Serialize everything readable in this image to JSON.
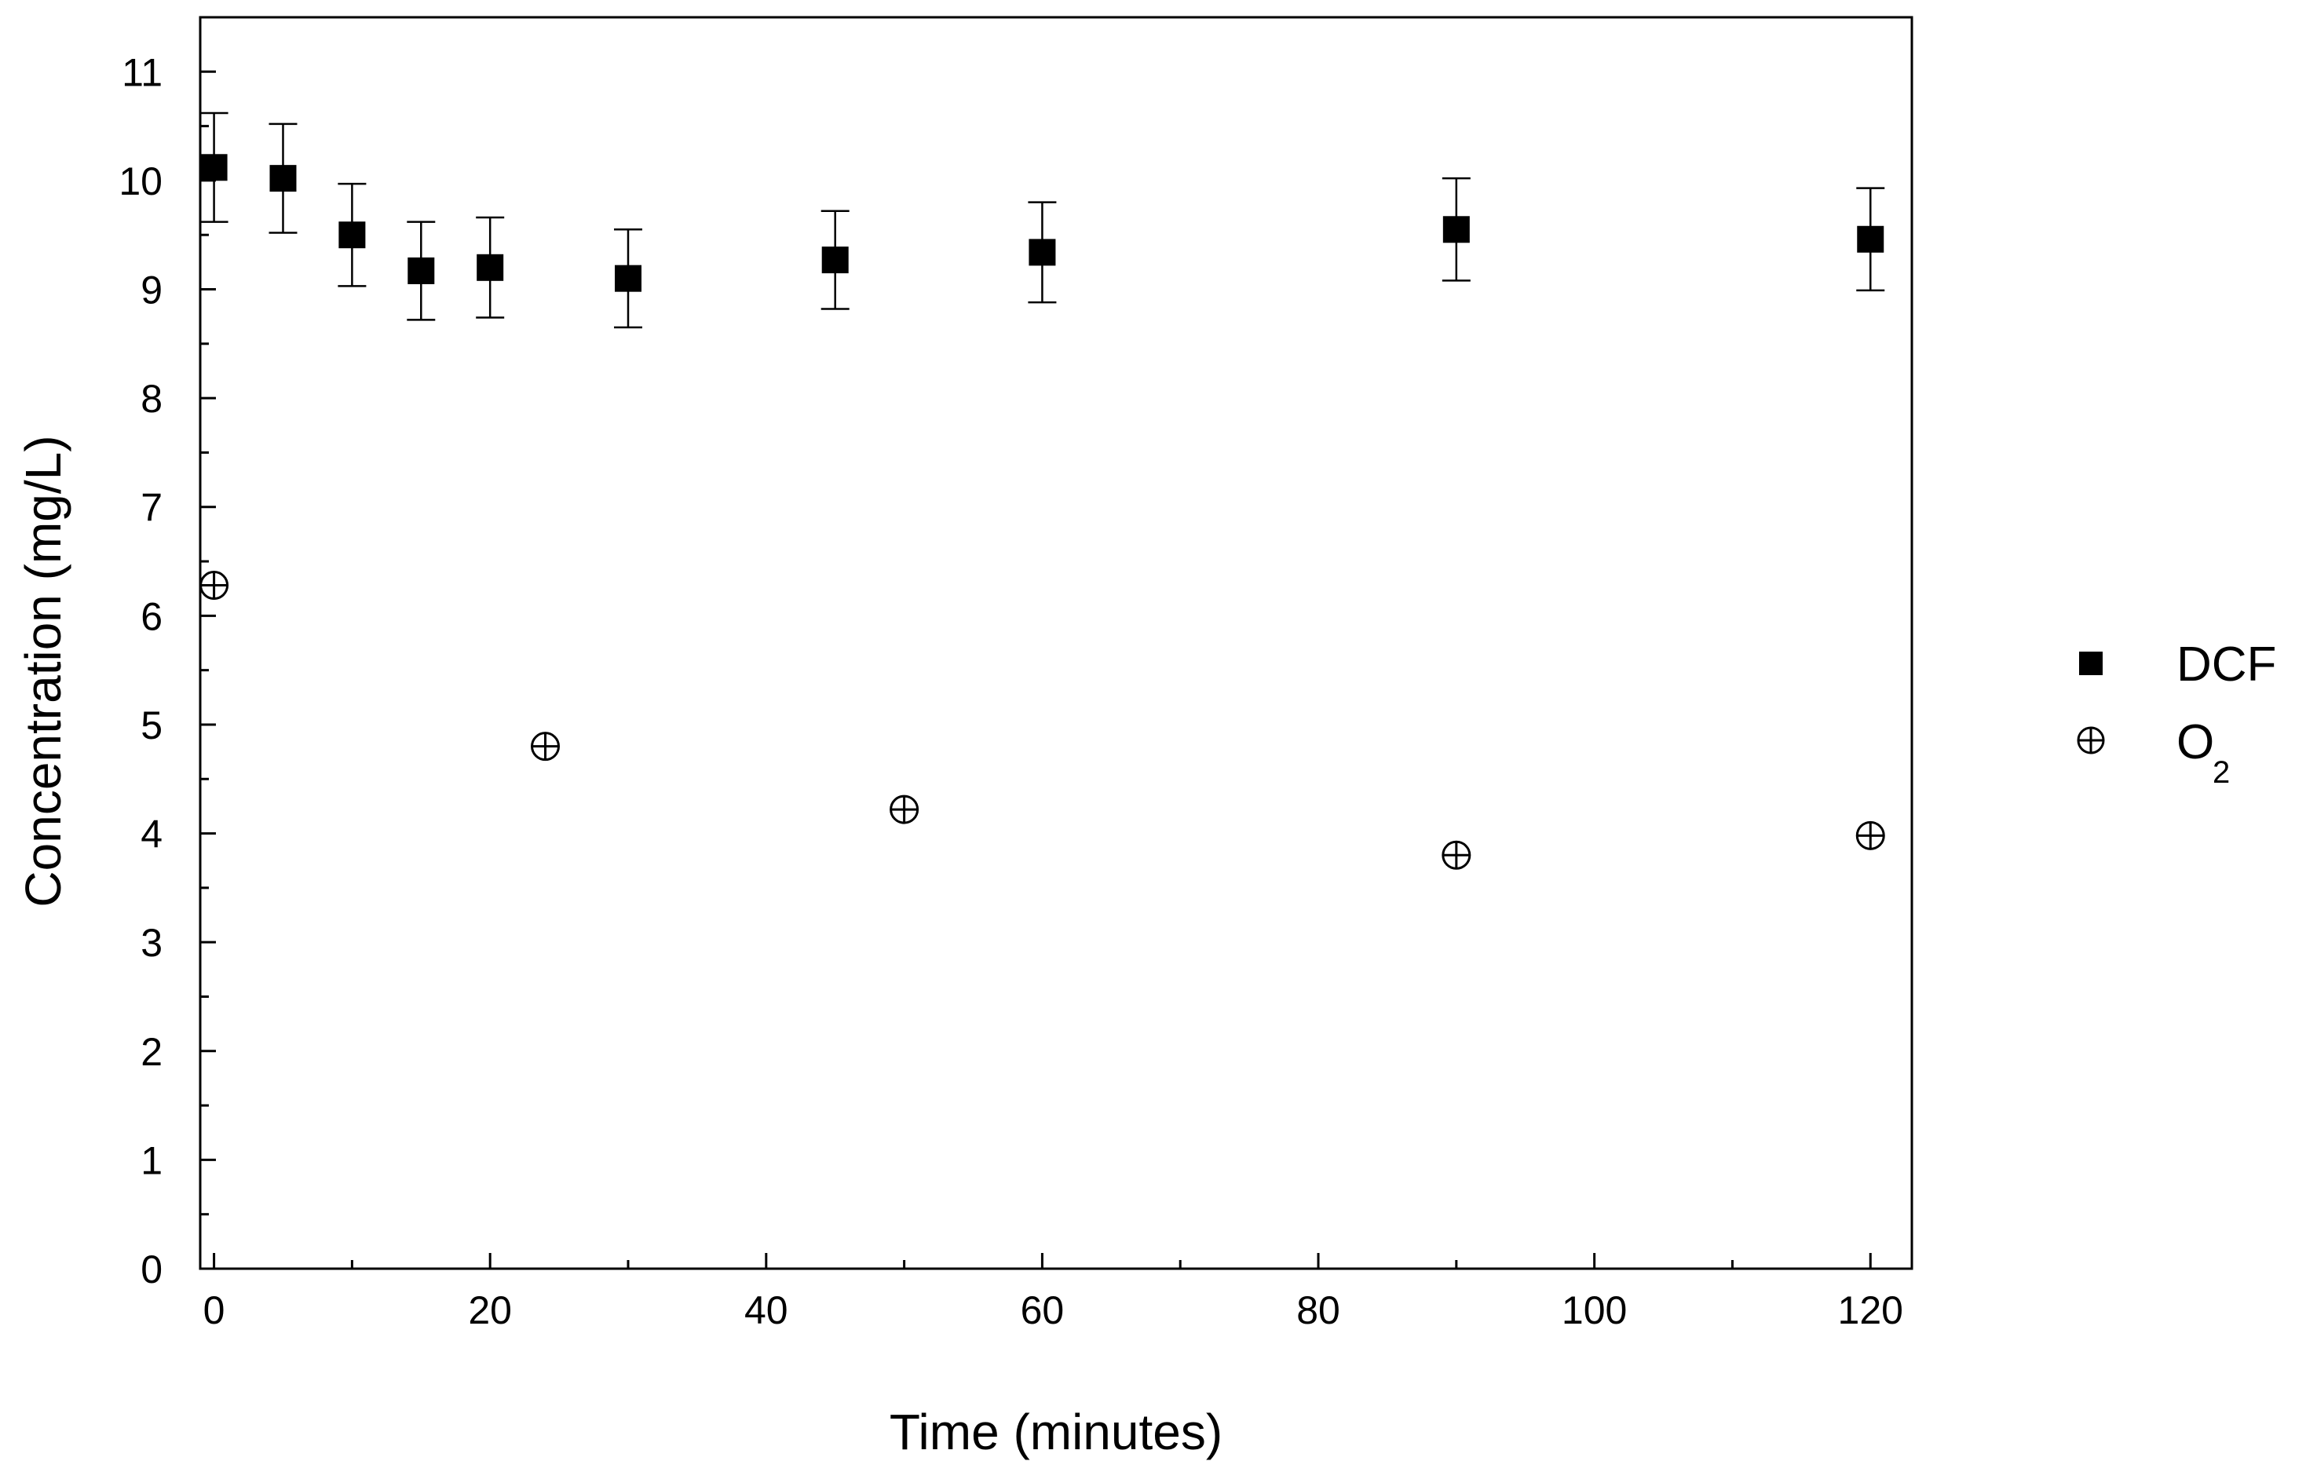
{
  "chart_data": {
    "type": "scatter",
    "xlabel": "Time (minutes)",
    "ylabel": "Concentration (mg/L)",
    "xlim": [
      -1,
      123
    ],
    "ylim": [
      0,
      11.5
    ],
    "x_ticks": [
      0,
      20,
      40,
      60,
      80,
      100,
      120
    ],
    "x_minor_ticks": [
      10,
      30,
      50,
      70,
      90,
      110
    ],
    "y_ticks": [
      0,
      1,
      2,
      3,
      4,
      5,
      6,
      7,
      8,
      9,
      10,
      11
    ],
    "legend_position": "right",
    "grid": false,
    "series": [
      {
        "name": "DCF",
        "marker": "filled-square",
        "color": "#000000",
        "points": [
          {
            "x": 0,
            "y": 10.12,
            "err": 0.5
          },
          {
            "x": 5,
            "y": 10.02,
            "err": 0.5
          },
          {
            "x": 10,
            "y": 9.5,
            "err": 0.47
          },
          {
            "x": 15,
            "y": 9.17,
            "err": 0.45
          },
          {
            "x": 20,
            "y": 9.2,
            "err": 0.46
          },
          {
            "x": 30,
            "y": 9.1,
            "err": 0.45
          },
          {
            "x": 45,
            "y": 9.27,
            "err": 0.45
          },
          {
            "x": 60,
            "y": 9.34,
            "err": 0.46
          },
          {
            "x": 90,
            "y": 9.55,
            "err": 0.47
          },
          {
            "x": 120,
            "y": 9.46,
            "err": 0.47
          }
        ]
      },
      {
        "name": "O",
        "name_subscript": "2",
        "marker": "crossed-circle",
        "color": "#000000",
        "points": [
          {
            "x": 0,
            "y": 6.28
          },
          {
            "x": 24,
            "y": 4.8
          },
          {
            "x": 50,
            "y": 4.22
          },
          {
            "x": 90,
            "y": 3.8
          },
          {
            "x": 120,
            "y": 3.98
          }
        ]
      }
    ]
  }
}
